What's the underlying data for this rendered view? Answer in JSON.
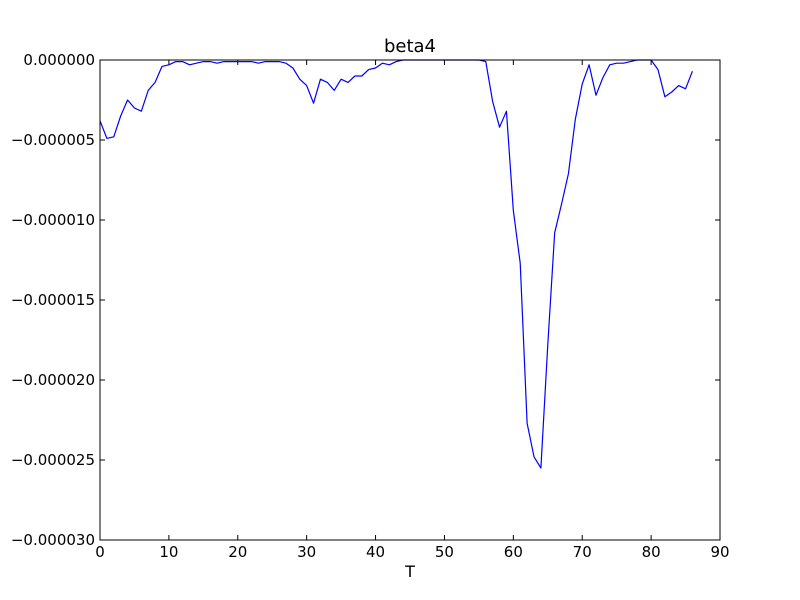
{
  "chart_data": {
    "type": "line",
    "title": "beta4",
    "xlabel": "T",
    "ylabel": "",
    "xlim": [
      0,
      90
    ],
    "ylim": [
      -3e-05,
      0.0
    ],
    "xticks": [
      0,
      10,
      20,
      30,
      40,
      50,
      60,
      70,
      80,
      90
    ],
    "xtick_labels": [
      "0",
      "10",
      "20",
      "30",
      "40",
      "50",
      "60",
      "70",
      "80",
      "90"
    ],
    "yticks": [
      0.0,
      -5e-06,
      -1e-05,
      -1.5e-05,
      -2e-05,
      -2.5e-05,
      -3e-05
    ],
    "ytick_labels": [
      "0.000000",
      "−0.000005",
      "−0.000010",
      "−0.000015",
      "−0.000020",
      "−0.000025",
      "−0.000030"
    ],
    "grid": false,
    "colors": {
      "line": "#0000ff",
      "axes": "#000000",
      "background": "#ffffff"
    },
    "series": [
      {
        "x": [
          0,
          1,
          2,
          3,
          4,
          5,
          6,
          7,
          8,
          9,
          10,
          11,
          12,
          13,
          14,
          15,
          16,
          17,
          18,
          19,
          20,
          21,
          22,
          23,
          24,
          25,
          26,
          27,
          28,
          29,
          30,
          31,
          32,
          33,
          34,
          35,
          36,
          37,
          38,
          39,
          40,
          41,
          42,
          43,
          44,
          45,
          46,
          47,
          48,
          49,
          50,
          51,
          52,
          53,
          54,
          55,
          56,
          57,
          58,
          59,
          60,
          61,
          62,
          63,
          64,
          65,
          66,
          67,
          68,
          69,
          70,
          71,
          72,
          73,
          74,
          75,
          76,
          77,
          78,
          79,
          80,
          81,
          82,
          83,
          84,
          85,
          86
        ],
        "values": [
          -3.8e-06,
          -4.9e-06,
          -4.8e-06,
          -3.5e-06,
          -2.5e-06,
          -3e-06,
          -3.2e-06,
          -1.9e-06,
          -1.4e-06,
          -4e-07,
          -3e-07,
          -1e-07,
          -1e-07,
          -3e-07,
          -2e-07,
          -1e-07,
          -1e-07,
          -2e-07,
          -1e-07,
          -1e-07,
          -1e-07,
          -1e-07,
          -1e-07,
          -2e-07,
          -1e-07,
          -1e-07,
          -1e-07,
          -2e-07,
          -5e-07,
          -1.2e-06,
          -1.6e-06,
          -2.7e-06,
          -1.2e-06,
          -1.4e-06,
          -1.9e-06,
          -1.2e-06,
          -1.4e-06,
          -1e-06,
          -1e-06,
          -6e-07,
          -5e-07,
          -2e-07,
          -3e-07,
          -1e-07,
          0.0,
          0.0,
          0.0,
          0.0,
          0.0,
          0.0,
          0.0,
          0.0,
          0.0,
          0.0,
          0.0,
          0.0,
          -1e-07,
          -2.6e-06,
          -4.2e-06,
          -3.2e-06,
          -9.4e-06,
          -1.27e-05,
          -2.27e-05,
          -2.48e-05,
          -2.55e-05,
          -1.78e-05,
          -1.08e-05,
          -9e-06,
          -7.1e-06,
          -3.7e-06,
          -1.5e-06,
          -3e-07,
          -2.2e-06,
          -1.1e-06,
          -3e-07,
          -2e-07,
          -2e-07,
          -1e-07,
          0.0,
          0.0,
          0.0,
          -6e-07,
          -2.3e-06,
          -2e-06,
          -1.6e-06,
          -1.8e-06,
          -7e-07
        ]
      }
    ]
  }
}
